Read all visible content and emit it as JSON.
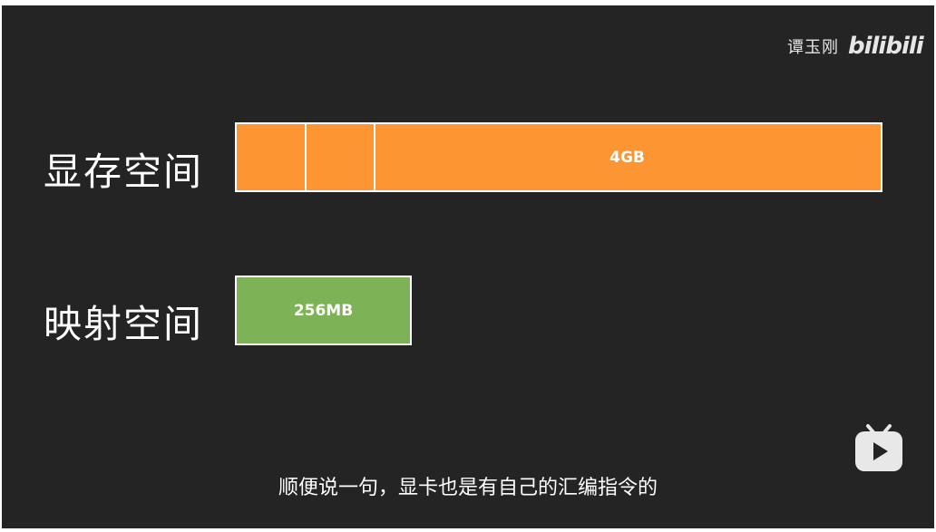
{
  "watermark": {
    "author": "谭玉刚",
    "logo": "bilibili"
  },
  "rows": {
    "vram": {
      "label": "显存空间",
      "bar_text": "4GB",
      "color": "#fd9532"
    },
    "mapped": {
      "label": "映射空间",
      "bar_text": "256MB",
      "color": "#7db257"
    }
  },
  "subtitle": "顺便说一句，显卡也是有自己的汇编指令的",
  "icons": {
    "player": "bilibili-tv-icon"
  }
}
